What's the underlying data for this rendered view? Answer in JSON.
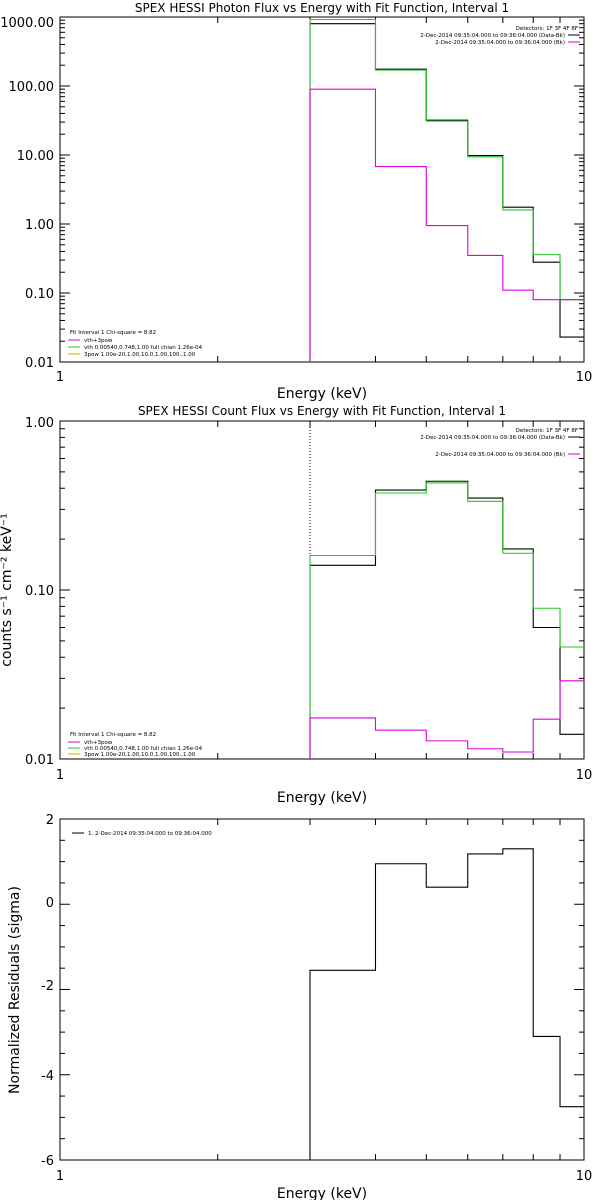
{
  "chart_data": [
    {
      "type": "line",
      "title": "SPEX HESSI Photon Flux vs Energy with Fit Function, Interval 1",
      "xlabel": "Energy (keV)",
      "ylabel": "",
      "xscale": "log",
      "yscale": "log",
      "xlim": [
        1,
        10
      ],
      "ylim": [
        0.01,
        1000
      ],
      "xtick_labels": [
        "1",
        "10"
      ],
      "ytick_labels": [
        "0.01",
        "0.10",
        "1.00",
        "10.00",
        "100.00",
        "1000.00"
      ],
      "info_top_right": [
        "Detectors: 1F 3F 4F 8F",
        "2-Dec-2014 09:35:04.000 to 09:36:04.000 (Data-Bk)",
        "2-Dec-2014 09:35:04.000 to 09:36:04.000 (Bk)"
      ],
      "info_bottom_left": [
        "Fit Interval 1   Chi-square = 8.82",
        "vth+3pow",
        "vth 0.00540,0.748,1.00  full chian 1.26e-04",
        "3pow 1.00e-20,1.00,10.0,1.00,100.,1.00"
      ],
      "energy_edges": [
        3,
        4,
        5,
        6,
        7,
        8,
        9,
        10
      ],
      "series": [
        {
          "name": "Data-Bk",
          "color": "#000000",
          "values": [
            800,
            175,
            32,
            9.8,
            1.75,
            0.28,
            0.023
          ]
        },
        {
          "name": "vth+3pow",
          "color": "#22c822",
          "values": [
            920,
            170,
            31,
            9.4,
            1.6,
            0.36,
            0.08
          ]
        },
        {
          "name": "Bk",
          "color": "#dd00dd",
          "values": [
            90,
            6.8,
            0.95,
            0.35,
            0.11,
            0.08,
            0.08
          ]
        }
      ]
    },
    {
      "type": "line",
      "title": "SPEX HESSI Count Flux vs Energy with Fit Function, Interval 1",
      "xlabel": "Energy (keV)",
      "ylabel": "counts s⁻¹ cm⁻² keV⁻¹",
      "xscale": "log",
      "yscale": "log",
      "xlim": [
        1,
        10
      ],
      "ylim": [
        0.01,
        1.0
      ],
      "xtick_labels": [
        "1",
        "10"
      ],
      "ytick_labels": [
        "0.01",
        "0.10",
        "1.00"
      ],
      "info_top_right": [
        "Detectors: 1F 3F 4F 8F",
        "2-Dec-2014 09:35:04.000 to 09:36:04.000 (Data-Bk)",
        "2-Dec-2014 09:35:04.000 to 09:36:04.000 (Bk)"
      ],
      "info_bottom_left": [
        "Fit Interval 1   Chi-square = 8.82",
        "vth+3pow",
        "vth 0.00540,0.748,1.00  full chian 1.26e-04",
        "3pow 1.00e-20,1.00,10.0,1.00,100.,1.00"
      ],
      "energy_edges": [
        3,
        4,
        5,
        6,
        7,
        8,
        9,
        10
      ],
      "series": [
        {
          "name": "Data-Bk",
          "color": "#000000",
          "values": [
            0.14,
            0.39,
            0.44,
            0.35,
            0.175,
            0.06,
            0.014
          ]
        },
        {
          "name": "vth+3pow",
          "color": "#22c822",
          "values": [
            0.16,
            0.375,
            0.43,
            0.335,
            0.165,
            0.078,
            0.046
          ]
        },
        {
          "name": "Bk",
          "color": "#dd00dd",
          "values": [
            0.0175,
            0.0148,
            0.0128,
            0.0115,
            0.011,
            0.0172,
            0.029
          ]
        }
      ]
    },
    {
      "type": "line",
      "title": "",
      "xlabel": "Energy (keV)",
      "ylabel": "Normalized Residuals (sigma)",
      "xscale": "log",
      "yscale": "linear",
      "xlim": [
        1,
        10
      ],
      "ylim": [
        -6,
        2
      ],
      "xtick_labels": [
        "1",
        "10"
      ],
      "ytick_labels": [
        "-6",
        "-4",
        "-2",
        "0",
        "2"
      ],
      "legend": "1.  2-Dec-2014 09:35:04.000 to 09:36:04.000",
      "energy_edges": [
        3,
        4,
        5,
        6,
        7,
        8,
        9,
        10
      ],
      "series": [
        {
          "name": "1.  2-Dec-2014 09:35:04.000 to 09:36:04.000",
          "color": "#000000",
          "values": [
            -1.55,
            0.95,
            0.4,
            1.18,
            1.3,
            -3.1,
            -4.75
          ]
        }
      ]
    }
  ]
}
